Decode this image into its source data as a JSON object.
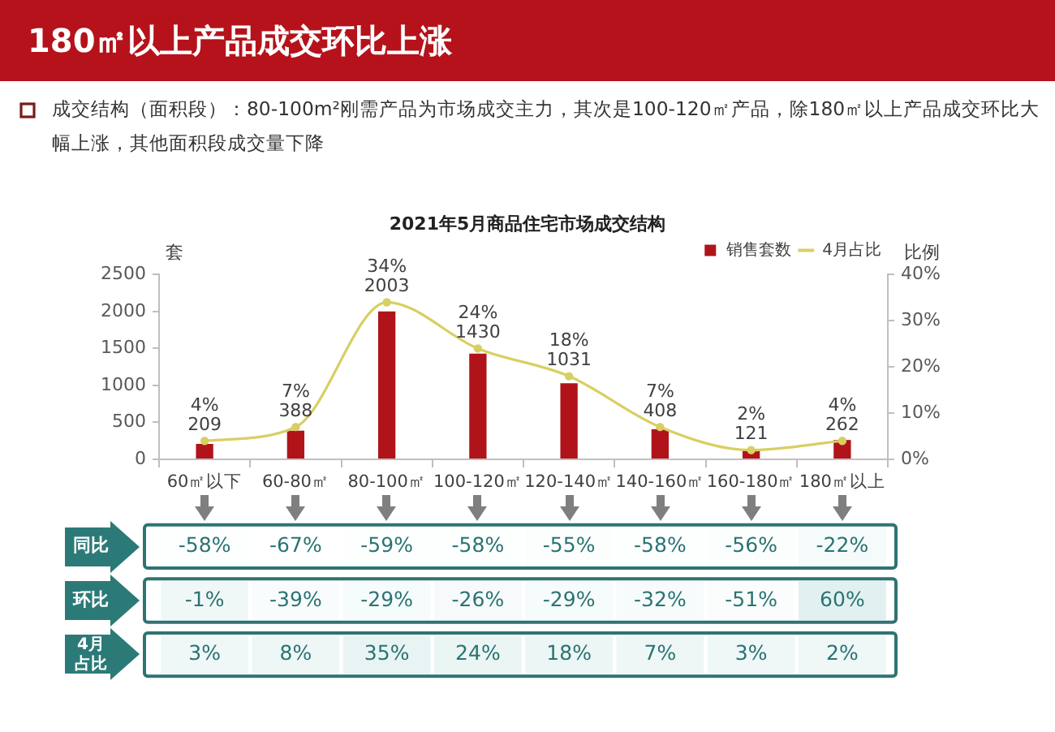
{
  "chart_data": [
    {
      "type": "bar",
      "title": "180㎡以上产品成交环比上涨",
      "subtitle": "2021年5月商品住宅市场成交结构",
      "annotations": [
        "成交结构（面积段）：80-100m²刚需产品为市场成交主力，其次是100-120㎡产品，除180㎡以上产品成交环比大幅上涨，其他面积段成交量下降"
      ],
      "ylabel": "套",
      "y2label": "比例",
      "categories": [
        "60㎡以下",
        "60-80㎡",
        "80-100㎡",
        "100-120㎡",
        "120-140㎡",
        "140-160㎡",
        "160-180㎡",
        "180㎡以上"
      ],
      "series": [
        {
          "name": "销售套数",
          "type": "bar",
          "color": "#b0141a",
          "values": [
            209,
            388,
            2003,
            1430,
            1031,
            408,
            121,
            262
          ]
        },
        {
          "name": "4月占比",
          "type": "line",
          "axis": "y2",
          "color": "#d8cf63",
          "values": [
            4,
            7,
            34,
            24,
            18,
            7,
            2,
            4
          ],
          "value_labels": [
            "4%",
            "7%",
            "34%",
            "24%",
            "18%",
            "7%",
            "2%",
            "4%"
          ]
        }
      ],
      "ylim": [
        0,
        2500
      ],
      "yticks": [
        0,
        500,
        1000,
        1500,
        2000,
        2500
      ],
      "y2lim": [
        0,
        40
      ],
      "y2ticks": [
        {
          "value": 0,
          "label": "0%"
        },
        {
          "value": 10,
          "label": "10%"
        },
        {
          "value": 20,
          "label": "20%"
        },
        {
          "value": 30,
          "label": "30%"
        },
        {
          "value": 40,
          "label": "40%"
        }
      ],
      "data_labels": true,
      "legend": "top right",
      "marker": "circle",
      "line_style": "solid"
    },
    {
      "type": "heatmap",
      "categories": [
        null,
        null,
        null,
        null,
        null,
        null,
        null,
        null
      ],
      "y_categories": [
        "同比",
        "环比",
        "4月占比"
      ],
      "cells": [
        [
          -58,
          -67,
          -59,
          -58,
          -55,
          -58,
          -56,
          -22
        ],
        [
          -1,
          -39,
          -29,
          -26,
          -29,
          -32,
          -51,
          60
        ],
        [
          3,
          8,
          35,
          24,
          18,
          7,
          3,
          2
        ]
      ],
      "cell_labels": [
        [
          "-58%",
          "-67%",
          "-59%",
          "-58%",
          "-55%",
          "-58%",
          "-56%",
          "-22%"
        ],
        [
          "-1%",
          "-39%",
          "-29%",
          "-26%",
          "-29%",
          "-32%",
          "-51%",
          "60%"
        ],
        [
          "3%",
          "8%",
          "35%",
          "24%",
          "18%",
          "7%",
          "3%",
          "2%"
        ]
      ]
    }
  ]
}
